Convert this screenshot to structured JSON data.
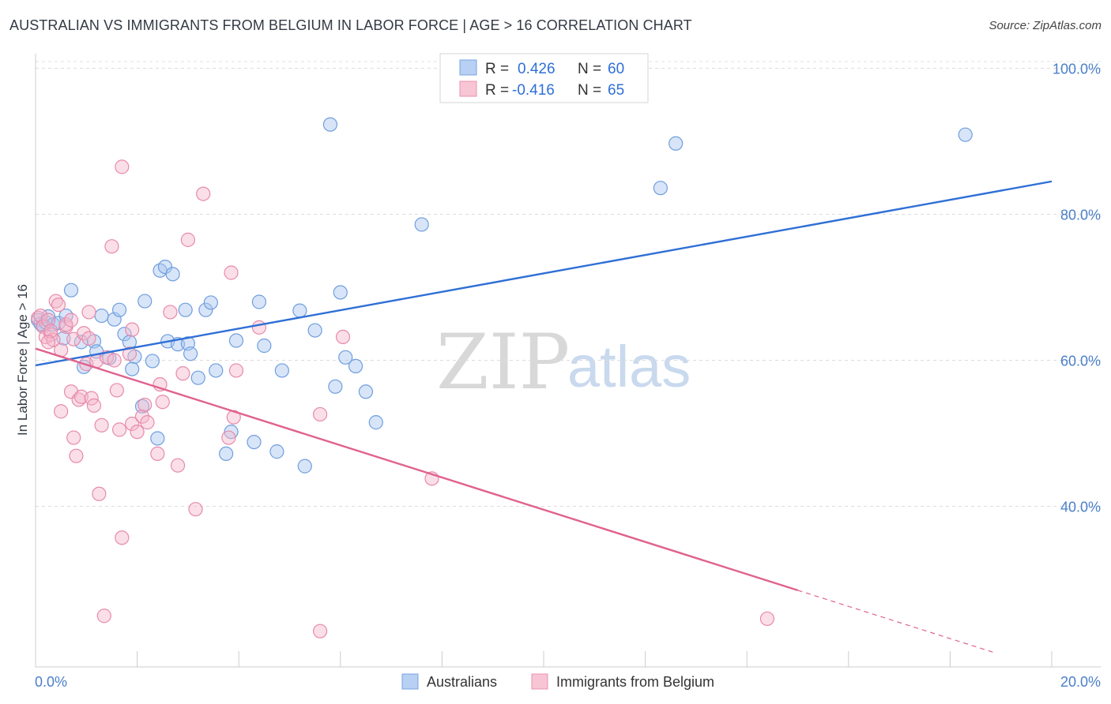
{
  "title": "AUSTRALIAN VS IMMIGRANTS FROM BELGIUM IN LABOR FORCE | AGE > 16 CORRELATION CHART",
  "source": "Source: ZipAtlas.com",
  "colors": {
    "blue": "#2f6fd6",
    "pink": "#e0628f",
    "blue_fill": "#a8c6f0",
    "pink_fill": "#f5b8cb"
  },
  "watermark": {
    "zip": "ZIP",
    "atlas": "atlas"
  },
  "chart_data": {
    "type": "scatter",
    "title": "AUSTRALIAN VS IMMIGRANTS FROM BELGIUM IN LABOR FORCE | AGE > 16 CORRELATION CHART",
    "xlabel": "",
    "ylabel": "In Labor Force | Age > 16",
    "xlim": [
      0,
      20
    ],
    "ylim": [
      18,
      102
    ],
    "x_tick_labels": [
      "0.0%",
      "20.0%"
    ],
    "y_ticks": [
      40,
      60,
      80,
      100
    ],
    "y_tick_labels": [
      "40.0%",
      "60.0%",
      "80.0%",
      "100.0%"
    ],
    "legend": [
      {
        "r_label": "R =",
        "r_value": "0.426",
        "n_label": "N =",
        "n_value": "60"
      },
      {
        "r_label": "R =",
        "r_value": "-0.416",
        "n_label": "N =",
        "n_value": "65"
      }
    ],
    "series": [
      {
        "name": "Australians",
        "color": "#2f6fd6",
        "trend": {
          "x0": 0,
          "y0": 59.3,
          "x1": 20,
          "y1": 84.5
        },
        "points": [
          [
            0.05,
            65.5
          ],
          [
            0.1,
            65.0
          ],
          [
            0.15,
            64.8
          ],
          [
            0.2,
            65.2
          ],
          [
            0.25,
            66.0
          ],
          [
            0.35,
            64.9
          ],
          [
            0.45,
            65.1
          ],
          [
            0.55,
            63.0
          ],
          [
            0.6,
            66.1
          ],
          [
            0.7,
            69.6
          ],
          [
            0.9,
            62.5
          ],
          [
            0.95,
            59.1
          ],
          [
            1.15,
            62.6
          ],
          [
            1.2,
            61.2
          ],
          [
            1.3,
            66.1
          ],
          [
            1.45,
            60.3
          ],
          [
            1.55,
            65.6
          ],
          [
            1.65,
            66.9
          ],
          [
            1.75,
            63.6
          ],
          [
            1.85,
            62.5
          ],
          [
            1.9,
            58.8
          ],
          [
            1.95,
            60.5
          ],
          [
            2.1,
            53.7
          ],
          [
            2.15,
            68.1
          ],
          [
            2.3,
            59.9
          ],
          [
            2.4,
            49.3
          ],
          [
            2.45,
            72.3
          ],
          [
            2.55,
            72.8
          ],
          [
            2.6,
            62.6
          ],
          [
            2.7,
            71.8
          ],
          [
            2.8,
            62.2
          ],
          [
            2.95,
            66.9
          ],
          [
            3.0,
            62.3
          ],
          [
            3.05,
            60.9
          ],
          [
            3.2,
            57.6
          ],
          [
            3.35,
            66.9
          ],
          [
            3.45,
            67.9
          ],
          [
            3.55,
            58.6
          ],
          [
            3.75,
            47.2
          ],
          [
            3.85,
            50.2
          ],
          [
            3.95,
            62.7
          ],
          [
            4.3,
            48.8
          ],
          [
            4.4,
            68.0
          ],
          [
            4.5,
            62.0
          ],
          [
            4.75,
            47.5
          ],
          [
            4.85,
            58.6
          ],
          [
            5.2,
            66.8
          ],
          [
            5.3,
            45.5
          ],
          [
            5.5,
            64.1
          ],
          [
            5.8,
            92.3
          ],
          [
            5.9,
            56.4
          ],
          [
            6.0,
            69.3
          ],
          [
            6.1,
            60.4
          ],
          [
            6.3,
            59.2
          ],
          [
            6.5,
            55.7
          ],
          [
            6.7,
            51.5
          ],
          [
            7.6,
            78.6
          ],
          [
            12.3,
            83.6
          ],
          [
            12.6,
            89.7
          ],
          [
            18.3,
            90.9
          ]
        ]
      },
      {
        "name": "Immigrants from Belgium",
        "color": "#e0628f",
        "trend": {
          "x0": 0,
          "y0": 61.6,
          "x1": 15.0,
          "y1": 28.5,
          "dash_to_x": 20,
          "dash_to_y": 17.5
        },
        "points": [
          [
            0.05,
            65.8
          ],
          [
            0.1,
            66.1
          ],
          [
            0.15,
            64.6
          ],
          [
            0.2,
            63.2
          ],
          [
            0.25,
            65.5
          ],
          [
            0.3,
            63.5
          ],
          [
            0.35,
            62.8
          ],
          [
            0.4,
            68.1
          ],
          [
            0.45,
            67.6
          ],
          [
            0.5,
            61.4
          ],
          [
            0.5,
            53.0
          ],
          [
            0.6,
            64.6
          ],
          [
            0.7,
            55.7
          ],
          [
            0.75,
            62.9
          ],
          [
            0.75,
            49.4
          ],
          [
            0.8,
            46.9
          ],
          [
            0.85,
            54.6
          ],
          [
            0.9,
            55.0
          ],
          [
            0.95,
            63.7
          ],
          [
            1.0,
            59.5
          ],
          [
            1.05,
            66.6
          ],
          [
            1.1,
            54.8
          ],
          [
            1.15,
            53.8
          ],
          [
            1.2,
            59.9
          ],
          [
            1.25,
            41.7
          ],
          [
            1.3,
            51.1
          ],
          [
            1.35,
            25.0
          ],
          [
            1.4,
            60.4
          ],
          [
            1.5,
            75.6
          ],
          [
            1.6,
            55.9
          ],
          [
            1.65,
            50.5
          ],
          [
            1.7,
            35.7
          ],
          [
            1.7,
            86.5
          ],
          [
            1.85,
            60.9
          ],
          [
            1.9,
            64.2
          ],
          [
            1.9,
            51.3
          ],
          [
            2.0,
            50.2
          ],
          [
            2.1,
            52.3
          ],
          [
            2.15,
            53.9
          ],
          [
            2.4,
            47.2
          ],
          [
            2.45,
            56.7
          ],
          [
            2.5,
            54.3
          ],
          [
            2.65,
            66.6
          ],
          [
            2.8,
            45.6
          ],
          [
            2.9,
            58.2
          ],
          [
            3.0,
            76.5
          ],
          [
            3.15,
            39.6
          ],
          [
            3.3,
            82.8
          ],
          [
            3.8,
            49.4
          ],
          [
            3.85,
            72.0
          ],
          [
            3.9,
            52.2
          ],
          [
            3.95,
            58.6
          ],
          [
            4.4,
            64.5
          ],
          [
            5.6,
            52.6
          ],
          [
            5.6,
            22.9
          ],
          [
            6.05,
            63.2
          ],
          [
            7.8,
            43.8
          ],
          [
            14.4,
            24.6
          ],
          [
            0.6,
            64.9
          ],
          [
            0.7,
            65.5
          ],
          [
            1.05,
            63.0
          ],
          [
            0.3,
            64.0
          ],
          [
            0.25,
            62.5
          ],
          [
            1.55,
            60.0
          ],
          [
            2.2,
            51.5
          ]
        ]
      }
    ]
  },
  "bottom_legend": [
    "Australians",
    "Immigrants from Belgium"
  ]
}
